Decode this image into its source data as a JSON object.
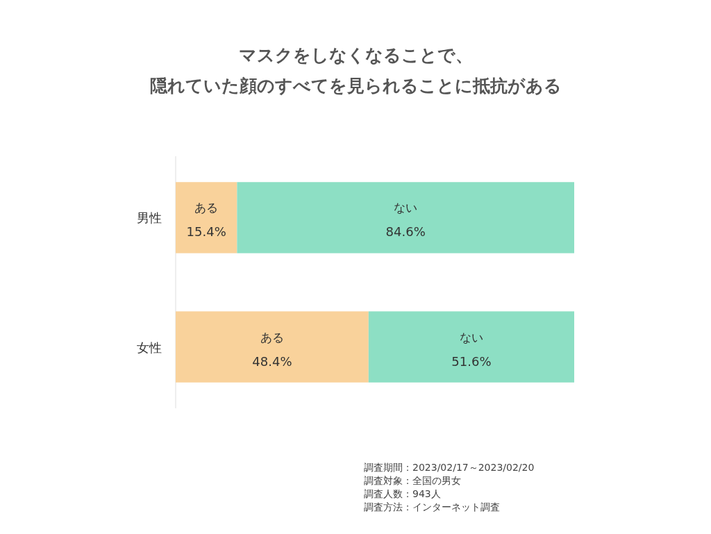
{
  "chart_data": {
    "type": "bar",
    "orientation": "horizontal",
    "stacked": true,
    "title": "マスクをしなくなることで、隠れていた顔のすべてを見られることに抵抗がある",
    "categories": [
      "男性",
      "女性"
    ],
    "tick_labels": "y",
    "series": [
      {
        "name": "ある",
        "color": "#f9d29b",
        "values": [
          15.4,
          48.4
        ],
        "value_labels": [
          "15.4%",
          "48.4%"
        ]
      },
      {
        "name": "ない",
        "color": "#8ddfc4",
        "values": [
          84.6,
          51.6
        ],
        "value_labels": [
          "84.6%",
          "51.6%"
        ]
      }
    ],
    "annotations": [
      "調査期間：2023/02/17～2023/02/20",
      "調査対象：全国の男女",
      "調査人数：943人",
      "調査方法：インターネット調査"
    ]
  }
}
